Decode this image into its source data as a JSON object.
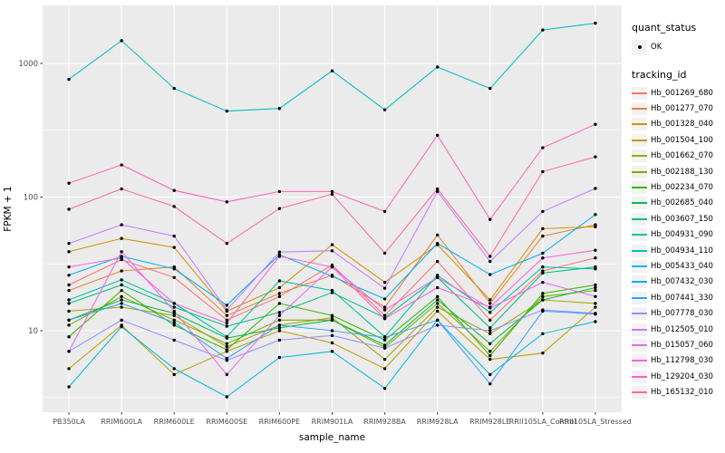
{
  "chart_data": {
    "type": "line",
    "title": "",
    "xlabel": "sample_name",
    "ylabel": "FPKM + 1",
    "y_scale": "log10",
    "ylim": [
      2.4,
      2750
    ],
    "yticks": [
      10,
      100,
      1000
    ],
    "ytick_labels": [
      "10",
      "100",
      "1000"
    ],
    "y_minor_ticks": [
      3.162,
      31.62,
      316.2
    ],
    "grid": "on",
    "legend_position": "right",
    "point_marker": "black-dot",
    "categories": [
      "PB350LA",
      "RRIM600LA",
      "RRIM600LE",
      "RRIM600SE",
      "RRIM600PE",
      "RRIM901LA",
      "RRIM928BA",
      "RRIM928LA",
      "RRIM928LE",
      "RRII105LA_Control",
      "RRII105LA_Stressed"
    ],
    "series": [
      {
        "tracking_id": "Hb_001269_680",
        "color": "#F8766D",
        "values": [
          22,
          34,
          25,
          12,
          18,
          31,
          13,
          33,
          12,
          28,
          35
        ]
      },
      {
        "tracking_id": "Hb_001277_070",
        "color": "#EA8331",
        "values": [
          20,
          28,
          30,
          13,
          19,
          26,
          15,
          52,
          16,
          51,
          62
        ]
      },
      {
        "tracking_id": "Hb_001328_040",
        "color": "#D89000",
        "values": [
          39,
          49,
          42,
          14,
          21,
          44,
          23,
          44,
          17,
          58,
          60
        ]
      },
      {
        "tracking_id": "Hb_001504_100",
        "color": "#C09B00",
        "values": [
          5.2,
          11,
          4.7,
          7.0,
          10,
          8.1,
          5.2,
          14,
          6.1,
          6.8,
          15
        ]
      },
      {
        "tracking_id": "Hb_001662_070",
        "color": "#A3A500",
        "values": [
          14,
          15,
          13,
          7.6,
          11,
          12.5,
          6.1,
          15,
          9.5,
          17,
          16
        ]
      },
      {
        "tracking_id": "Hb_002188_130",
        "color": "#7CAE00",
        "values": [
          11,
          18,
          12,
          8.0,
          12,
          12,
          7.5,
          16,
          7.0,
          18,
          20
        ]
      },
      {
        "tracking_id": "Hb_002234_070",
        "color": "#39B600",
        "values": [
          9.0,
          20,
          11,
          7.2,
          16,
          13,
          8.5,
          18,
          6.5,
          19,
          22
        ]
      },
      {
        "tracking_id": "Hb_002685_040",
        "color": "#00BB4E",
        "values": [
          12,
          17,
          13.5,
          8.8,
          10.5,
          12,
          7.8,
          17,
          8.0,
          17,
          21
        ]
      },
      {
        "tracking_id": "Hb_003607_150",
        "color": "#00BF7D",
        "values": [
          16,
          22,
          15,
          10.8,
          13.7,
          19.3,
          12.5,
          25,
          10.5,
          27,
          30
        ]
      },
      {
        "tracking_id": "Hb_004931_090",
        "color": "#00C1A3",
        "values": [
          17,
          24,
          16,
          9.0,
          23.6,
          20,
          9.0,
          26,
          13.7,
          30,
          29
        ]
      },
      {
        "tracking_id": "Hb_004934_110",
        "color": "#00BFC4",
        "values": [
          760,
          1480,
          650,
          440,
          460,
          880,
          450,
          940,
          650,
          1780,
          2000
        ]
      },
      {
        "tracking_id": "Hb_005433_040",
        "color": "#00BAE0",
        "values": [
          3.8,
          10.7,
          5.2,
          3.2,
          6.3,
          7.0,
          3.7,
          12,
          4.7,
          9.5,
          11.7
        ]
      },
      {
        "tracking_id": "Hb_007432_030",
        "color": "#00B0F6",
        "values": [
          26,
          36,
          29,
          15.5,
          37,
          25.5,
          17.3,
          45,
          26.3,
          38,
          74
        ]
      },
      {
        "tracking_id": "Hb_007441_330",
        "color": "#35A2FF",
        "values": [
          12,
          16,
          11.5,
          6.2,
          11,
          10,
          8.9,
          12,
          4.0,
          14,
          13.3
        ]
      },
      {
        "tracking_id": "Hb_007778_030",
        "color": "#9590FF",
        "values": [
          7.0,
          12,
          8.5,
          6.0,
          8.5,
          9.2,
          7.4,
          11,
          10.0,
          14.3,
          13.5
        ]
      },
      {
        "tracking_id": "Hb_012505_010",
        "color": "#C77CFF",
        "values": [
          45,
          62,
          51,
          14.3,
          38.8,
          39.6,
          20.8,
          110,
          33,
          78,
          116
        ]
      },
      {
        "tracking_id": "Hb_015057_060",
        "color": "#E76BF3",
        "values": [
          7.0,
          39,
          14,
          4.7,
          13,
          30,
          14.3,
          25,
          14.8,
          23,
          18
        ]
      },
      {
        "tracking_id": "Hb_112798_030",
        "color": "#FA62DB",
        "values": [
          30,
          35,
          16,
          11.4,
          36,
          30,
          12.3,
          21,
          15,
          35,
          40
        ]
      },
      {
        "tracking_id": "Hb_129204_030",
        "color": "#FF62BC",
        "values": [
          127,
          174,
          112,
          92,
          110,
          110,
          78,
          290,
          68,
          234,
          350
        ]
      },
      {
        "tracking_id": "Hb_165132_010",
        "color": "#FF6A98",
        "values": [
          81,
          115,
          85,
          45,
          82,
          105,
          38,
          115,
          36,
          155,
          200
        ]
      }
    ]
  },
  "legend": {
    "quant_status_title": "quant_status",
    "quant_status_value": "OK",
    "quant_status_marker": "black-point-icon",
    "tracking_title": "tracking_id"
  },
  "style_colors": {
    "panel_background": "#EBEBEB",
    "grid": "#FFFFFF",
    "axis_text": "#4D4D4D",
    "axis_title": "#000000",
    "point": "#000000",
    "legend_key_background": "#F2F2F2"
  }
}
